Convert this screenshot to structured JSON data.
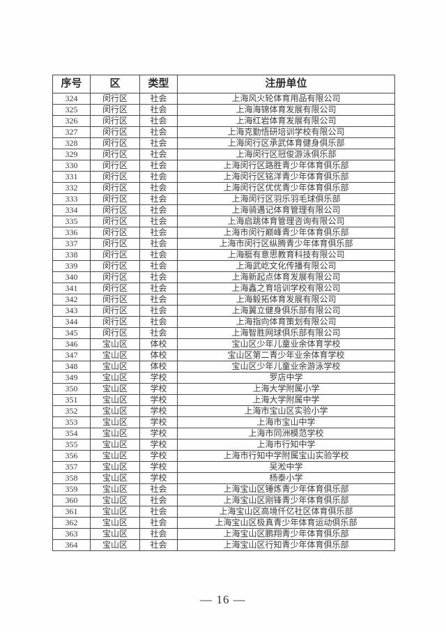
{
  "colors": {
    "border": "#4a4a4a",
    "text": "#3b3b3b"
  },
  "table": {
    "headers": [
      "序号",
      "区",
      "类型",
      "注册单位"
    ],
    "rows": [
      [
        "324",
        "闵行区",
        "社会",
        "上海风火轮体育用品有限公司"
      ],
      [
        "325",
        "闵行区",
        "社会",
        "上海海锦体育发展有限公司"
      ],
      [
        "326",
        "闵行区",
        "社会",
        "上海红岩体育发展有限公司"
      ],
      [
        "327",
        "闵行区",
        "社会",
        "上海克勤悟研培训学校有限公司"
      ],
      [
        "328",
        "闵行区",
        "社会",
        "上海闵行区承武体育健身俱乐部"
      ],
      [
        "329",
        "闵行区",
        "社会",
        "上海闵行区冠俊游泳俱乐部"
      ],
      [
        "330",
        "闵行区",
        "社会",
        "上海闵行区路胜青少年体育俱乐部"
      ],
      [
        "331",
        "闵行区",
        "社会",
        "上海闵行区铭洋青少年体育俱乐部"
      ],
      [
        "332",
        "闵行区",
        "社会",
        "上海闵行区优优青少年体育俱乐部"
      ],
      [
        "333",
        "闵行区",
        "社会",
        "上海闵行区羽乐羽毛球俱乐部"
      ],
      [
        "334",
        "闵行区",
        "社会",
        "上海骑遇记体育管理有限公司"
      ],
      [
        "335",
        "闵行区",
        "社会",
        "上海启跳体育管理咨询有限公司"
      ],
      [
        "336",
        "闵行区",
        "社会",
        "上海市闵行巅峰青少年体育俱乐部"
      ],
      [
        "337",
        "闵行区",
        "社会",
        "上海市闵行区纵腾青少年体育俱乐部"
      ],
      [
        "338",
        "闵行区",
        "社会",
        "上海艇有意思教育科技有限公司"
      ],
      [
        "339",
        "闵行区",
        "社会",
        "上海武屹文化传播有限公司"
      ],
      [
        "340",
        "闵行区",
        "社会",
        "上海新起点体育发展有限公司"
      ],
      [
        "341",
        "闵行区",
        "社会",
        "上海鑫之育培训学校有限公司"
      ],
      [
        "342",
        "闵行区",
        "社会",
        "上海毅拓体育发展有限公司"
      ],
      [
        "343",
        "闵行区",
        "社会",
        "上海翼立健身俱乐部有限公司"
      ],
      [
        "344",
        "闵行区",
        "社会",
        "上海指向体育策划有限公司"
      ],
      [
        "345",
        "闵行区",
        "社会",
        "上海智胜网球俱乐部有限公司"
      ],
      [
        "346",
        "宝山区",
        "体校",
        "宝山区少年儿童业余体育学校"
      ],
      [
        "347",
        "宝山区",
        "体校",
        "宝山区第二青少年业余体育学校"
      ],
      [
        "348",
        "宝山区",
        "体校",
        "宝山区少年儿童业余游泳学校"
      ],
      [
        "349",
        "宝山区",
        "学校",
        "罗店中学"
      ],
      [
        "350",
        "宝山区",
        "学校",
        "上海大学附属小学"
      ],
      [
        "351",
        "宝山区",
        "学校",
        "上海大学附属中学"
      ],
      [
        "352",
        "宝山区",
        "学校",
        "上海市宝山区实验小学"
      ],
      [
        "353",
        "宝山区",
        "学校",
        "上海市宝山中学"
      ],
      [
        "354",
        "宝山区",
        "学校",
        "上海市同洲模范学校"
      ],
      [
        "355",
        "宝山区",
        "学校",
        "上海市行知中学"
      ],
      [
        "356",
        "宝山区",
        "学校",
        "上海市行知中学附属宝山实验学校"
      ],
      [
        "357",
        "宝山区",
        "学校",
        "吴淞中学"
      ],
      [
        "358",
        "宝山区",
        "学校",
        "杨泰小学"
      ],
      [
        "359",
        "宝山区",
        "社会",
        "上海宝山区锤炼青少年体育俱乐部"
      ],
      [
        "360",
        "宝山区",
        "社会",
        "上海宝山区刚锋青少年体育俱乐部"
      ],
      [
        "361",
        "宝山区",
        "社会",
        "上海宝山区高境仟亿社区体育俱乐部"
      ],
      [
        "362",
        "宝山区",
        "社会",
        "上海宝山区极真青少年体育运动俱乐部"
      ],
      [
        "363",
        "宝山区",
        "社会",
        "上海宝山区鹏翔青少年体育俱乐部"
      ],
      [
        "364",
        "宝山区",
        "社会",
        "上海宝山区行知青少年体育俱乐部"
      ]
    ]
  },
  "footer": {
    "page_number": "— 16 —"
  }
}
